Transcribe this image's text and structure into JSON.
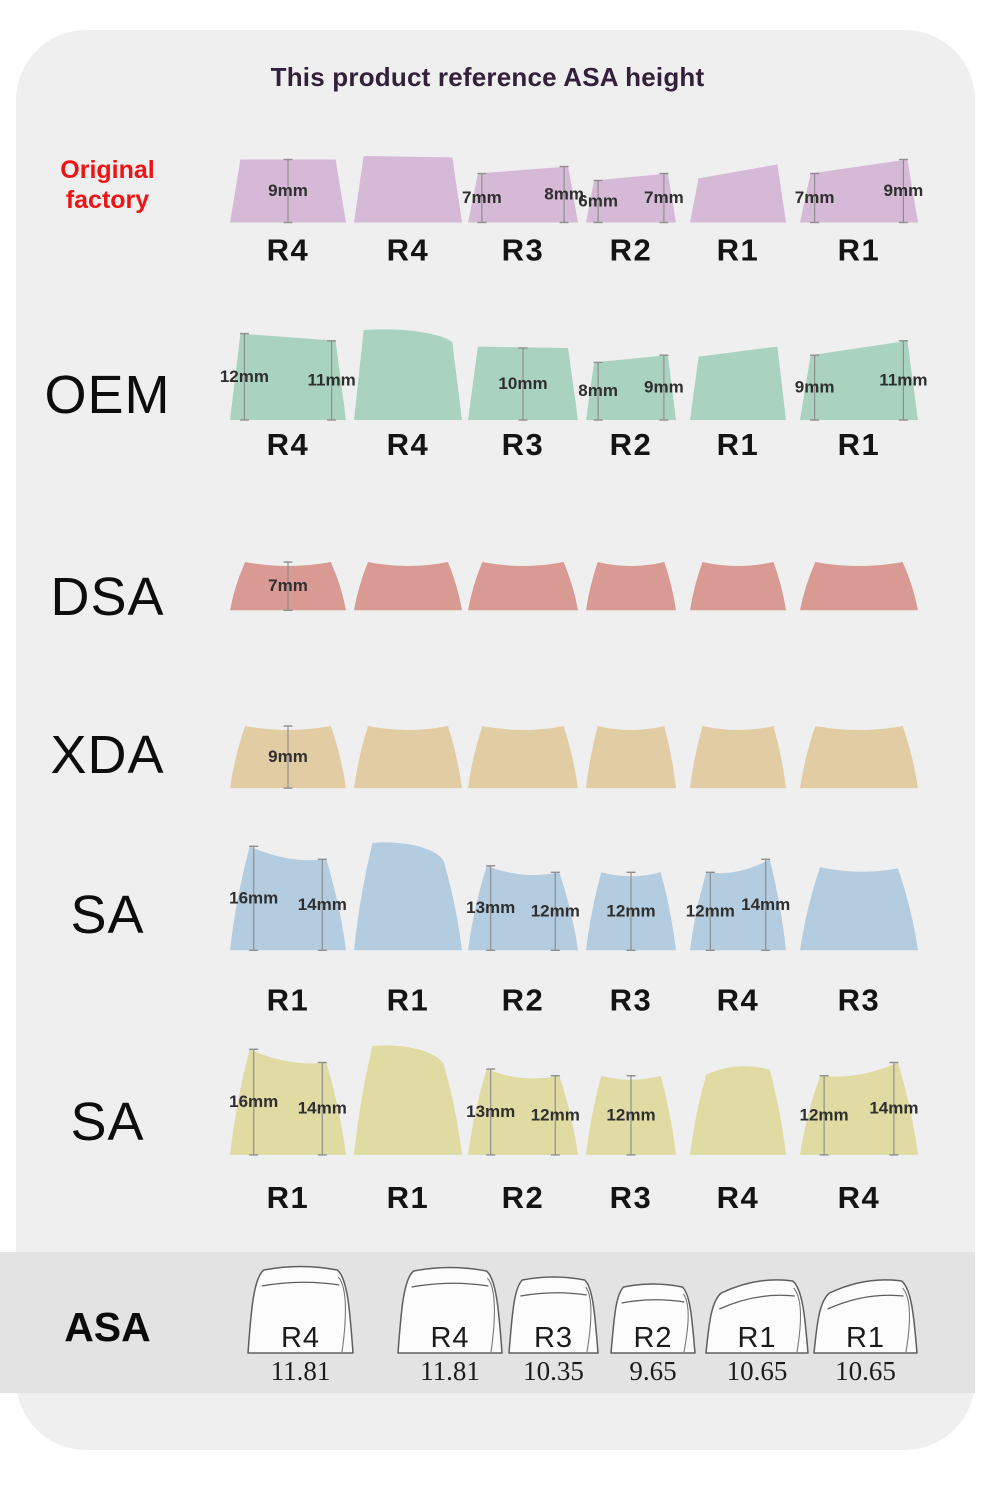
{
  "title": {
    "text": "This product reference ASA height",
    "color": "#33203b"
  },
  "colors": {
    "page_bg": "#ffffff",
    "card_bg": "#efeff0",
    "band_bg": "#e3e3e4",
    "tick": "#8f8f8f",
    "dim_text": "#2f2f2f",
    "row_label_text": "#141414",
    "asa_outline": "#5e5e5e",
    "red_accent": "#ee1414"
  },
  "profiles": [
    {
      "key": "original-factory",
      "label_lines": [
        "Original",
        "factory"
      ],
      "color": "#d5b9d6",
      "caps": [
        {
          "r": "R4",
          "hl": 9,
          "hr": 9,
          "shape": "flat",
          "dims": [
            {
              "text": "9mm",
              "at": "center"
            }
          ]
        },
        {
          "r": "R4",
          "hl": 9.5,
          "hr": 9.3,
          "shape": "flat",
          "dims": []
        },
        {
          "r": "R3",
          "hl": 7,
          "hr": 8,
          "shape": "flat",
          "dims": [
            {
              "text": "7mm",
              "at": "left"
            },
            {
              "text": "8mm",
              "at": "right"
            }
          ]
        },
        {
          "r": "R2",
          "hl": 6,
          "hr": 7,
          "shape": "flat",
          "dims": [
            {
              "text": "6mm",
              "at": "left"
            },
            {
              "text": "7mm",
              "at": "right"
            }
          ]
        },
        {
          "r": "R1",
          "hl": 6.3,
          "hr": 8.3,
          "shape": "flat",
          "dims": []
        },
        {
          "r": "R1",
          "hl": 7,
          "hr": 9,
          "shape": "flat",
          "dims": [
            {
              "text": "7mm",
              "at": "left"
            },
            {
              "text": "9mm",
              "at": "right"
            }
          ]
        }
      ]
    },
    {
      "key": "oem",
      "label": "OEM",
      "color": "#a9d3bf",
      "caps": [
        {
          "r": "R4",
          "hl": 12,
          "hr": 11,
          "shape": "flat",
          "dims": [
            {
              "text": "12mm",
              "at": "left"
            },
            {
              "text": "11mm",
              "at": "right"
            }
          ]
        },
        {
          "r": "R4",
          "hl": 12.5,
          "hr": 10.8,
          "shape": "curvedown",
          "dims": []
        },
        {
          "r": "R3",
          "hl": 10.2,
          "hr": 10,
          "shape": "flat",
          "dims": [
            {
              "text": "10mm",
              "at": "center"
            }
          ]
        },
        {
          "r": "R2",
          "hl": 8,
          "hr": 9,
          "shape": "flat",
          "dims": [
            {
              "text": "8mm",
              "at": "left"
            },
            {
              "text": "9mm",
              "at": "right"
            }
          ]
        },
        {
          "r": "R1",
          "hl": 8.8,
          "hr": 10.2,
          "shape": "flat",
          "dims": []
        },
        {
          "r": "R1",
          "hl": 9,
          "hr": 11,
          "shape": "flat",
          "dims": [
            {
              "text": "9mm",
              "at": "left"
            },
            {
              "text": "11mm",
              "at": "right"
            }
          ]
        }
      ]
    },
    {
      "key": "dsa",
      "label": "DSA",
      "color": "#d89a92",
      "caps": [
        {
          "hl": 7,
          "hr": 7,
          "shape": "dish",
          "dims": [
            {
              "text": "7mm",
              "at": "center"
            }
          ]
        },
        {
          "hl": 7,
          "hr": 7,
          "shape": "dish",
          "dims": []
        },
        {
          "hl": 7,
          "hr": 7,
          "shape": "dish",
          "dims": []
        },
        {
          "hl": 7,
          "hr": 7,
          "shape": "dish",
          "dims": []
        },
        {
          "hl": 7,
          "hr": 7,
          "shape": "dish",
          "dims": []
        },
        {
          "hl": 7,
          "hr": 7,
          "shape": "dish",
          "dims": []
        }
      ]
    },
    {
      "key": "xda",
      "label": "XDA",
      "color": "#e2cca4",
      "caps": [
        {
          "hl": 9,
          "hr": 9,
          "shape": "dish",
          "dims": [
            {
              "text": "9mm",
              "at": "center"
            }
          ]
        },
        {
          "hl": 9,
          "hr": 9,
          "shape": "dish",
          "dims": []
        },
        {
          "hl": 9,
          "hr": 9,
          "shape": "dish",
          "dims": []
        },
        {
          "hl": 9,
          "hr": 9,
          "shape": "dish",
          "dims": []
        },
        {
          "hl": 9,
          "hr": 9,
          "shape": "dish",
          "dims": []
        },
        {
          "hl": 9,
          "hr": 9,
          "shape": "dish",
          "dims": []
        }
      ]
    },
    {
      "key": "sa-blue",
      "label": "SA",
      "color": "#b3cce0",
      "caps": [
        {
          "r": "R1",
          "hl": 16,
          "hr": 14,
          "shape": "sag",
          "dims": [
            {
              "text": "16mm",
              "at": "left"
            },
            {
              "text": "14mm",
              "at": "right"
            }
          ]
        },
        {
          "r": "R1",
          "hl": 16.5,
          "hr": 13.8,
          "shape": "curvedown",
          "dims": []
        },
        {
          "r": "R2",
          "hl": 13,
          "hr": 12,
          "shape": "sag",
          "dims": [
            {
              "text": "13mm",
              "at": "left"
            },
            {
              "text": "12mm",
              "at": "right"
            }
          ]
        },
        {
          "r": "R3",
          "hl": 12,
          "hr": 12,
          "shape": "dish",
          "dims": [
            {
              "text": "12mm",
              "at": "center"
            }
          ]
        },
        {
          "r": "R4",
          "hl": 12,
          "hr": 14,
          "shape": "sag",
          "dims": [
            {
              "text": "12mm",
              "at": "left"
            },
            {
              "text": "14mm",
              "at": "right"
            }
          ]
        },
        {
          "r": "R3",
          "hl": 12.8,
          "hr": 12.6,
          "shape": "dish",
          "dims": []
        }
      ]
    },
    {
      "key": "sa-yellow",
      "label": "SA",
      "color": "#dfdba2",
      "caps": [
        {
          "r": "R1",
          "hl": 16,
          "hr": 14,
          "shape": "sag",
          "dims": [
            {
              "text": "16mm",
              "at": "left"
            },
            {
              "text": "14mm",
              "at": "right"
            }
          ]
        },
        {
          "r": "R1",
          "hl": 16.5,
          "hr": 13.8,
          "shape": "curvedown",
          "dims": []
        },
        {
          "r": "R2",
          "hl": 13,
          "hr": 12,
          "shape": "sag",
          "dims": [
            {
              "text": "13mm",
              "at": "left"
            },
            {
              "text": "12mm",
              "at": "right"
            }
          ]
        },
        {
          "r": "R3",
          "hl": 12,
          "hr": 12,
          "shape": "dish",
          "dims": [
            {
              "text": "12mm",
              "at": "center"
            }
          ]
        },
        {
          "r": "R4",
          "hl": 12.2,
          "hr": 12.9,
          "shape": "dome",
          "dims": []
        },
        {
          "r": "R4",
          "hl": 12,
          "hr": 14,
          "shape": "sag",
          "dims": [
            {
              "text": "12mm",
              "at": "left"
            },
            {
              "text": "14mm",
              "at": "right"
            }
          ]
        }
      ]
    }
  ],
  "asa": {
    "label": "ASA",
    "caps": [
      {
        "r": "R4",
        "value": "11.81"
      },
      {
        "r": "R4",
        "value": "11.81"
      },
      {
        "r": "R3",
        "value": "10.35"
      },
      {
        "r": "R2",
        "value": "9.65"
      },
      {
        "r": "R1",
        "value": "10.65"
      },
      {
        "r": "R1",
        "value": "10.65"
      }
    ]
  }
}
